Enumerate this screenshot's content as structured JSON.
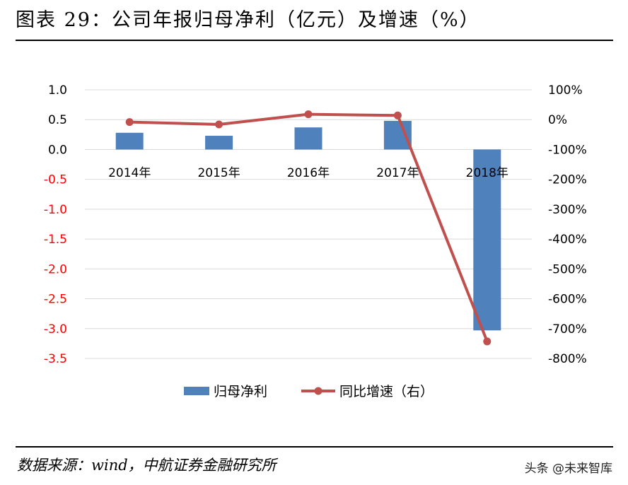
{
  "header": {
    "title": "图表 29：公司年报归母净利（亿元）及增速（%）"
  },
  "footer": {
    "source": "数据来源：wind，中航证券金融研究所",
    "watermark": "头条 @未来智库"
  },
  "colors": {
    "bar": "#4f81bd",
    "line": "#c0504d",
    "negative_tick": "#ff0000",
    "grid": "#d9d9d9"
  },
  "chart_data": {
    "type": "bar",
    "categories": [
      "2014年",
      "2015年",
      "2016年",
      "2017年",
      "2018年"
    ],
    "series": [
      {
        "name": "归母净利",
        "type": "bar",
        "axis": "left",
        "values": [
          0.28,
          0.23,
          0.37,
          0.48,
          -3.03
        ]
      },
      {
        "name": "同比增速（右）",
        "type": "line",
        "axis": "right",
        "values": [
          -8,
          -16,
          18,
          14,
          -743
        ]
      }
    ],
    "y_left": {
      "ylim": [
        -3.5,
        1.0
      ],
      "ticks": [
        1.0,
        0.5,
        0.0,
        -0.5,
        -1.0,
        -1.5,
        -2.0,
        -2.5,
        -3.0,
        -3.5
      ],
      "tick_labels": [
        "1.0",
        "0.5",
        "0.0",
        "-0.5",
        "-1.0",
        "-1.5",
        "-2.0",
        "-2.5",
        "-3.0",
        "-3.5"
      ]
    },
    "y_right": {
      "ylim": [
        -800,
        100
      ],
      "ticks": [
        100,
        0,
        -100,
        -200,
        -300,
        -400,
        -500,
        -600,
        -700,
        -800
      ],
      "tick_labels": [
        "100%",
        "0%",
        "-100%",
        "-200%",
        "-300%",
        "-400%",
        "-500%",
        "-600%",
        "-700%",
        "-800%"
      ]
    },
    "grid": true,
    "legend": "bottom"
  }
}
